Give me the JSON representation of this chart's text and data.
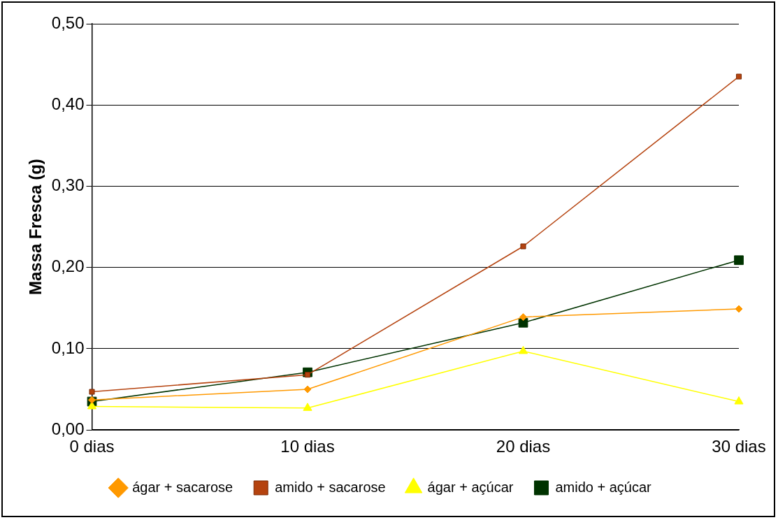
{
  "chart_data": {
    "type": "line",
    "ylabel": "Massa Fresca (g)",
    "categories": [
      "0 dias",
      "10 dias",
      "20 dias",
      "30 dias"
    ],
    "series": [
      {
        "name": "ágar + sacarose",
        "color": "#ff9900",
        "marker": "diamond",
        "values": [
          0.037,
          0.05,
          0.139,
          0.149
        ]
      },
      {
        "name": "amido + sacarose",
        "color": "#b5430f",
        "marker": "square",
        "values": [
          0.047,
          0.068,
          0.226,
          0.435
        ]
      },
      {
        "name": "ágar + açúcar",
        "color": "#ffff00",
        "marker": "triangle",
        "values": [
          0.029,
          0.027,
          0.097,
          0.035
        ]
      },
      {
        "name": "amido + açúcar",
        "color": "#003300",
        "marker": "square",
        "values": [
          0.035,
          0.071,
          0.132,
          0.209
        ]
      }
    ],
    "ylim": [
      0,
      0.5
    ],
    "yticks": [
      {
        "value": 0,
        "label": "0,00"
      },
      {
        "value": 0.1,
        "label": "0,10"
      },
      {
        "value": 0.2,
        "label": "0,20"
      },
      {
        "value": 0.3,
        "label": "0,30"
      },
      {
        "value": 0.4,
        "label": "0,40"
      },
      {
        "value": 0.5,
        "label": "0,50"
      }
    ],
    "grid": "y",
    "legend": "bottom",
    "line_style": "solid"
  }
}
